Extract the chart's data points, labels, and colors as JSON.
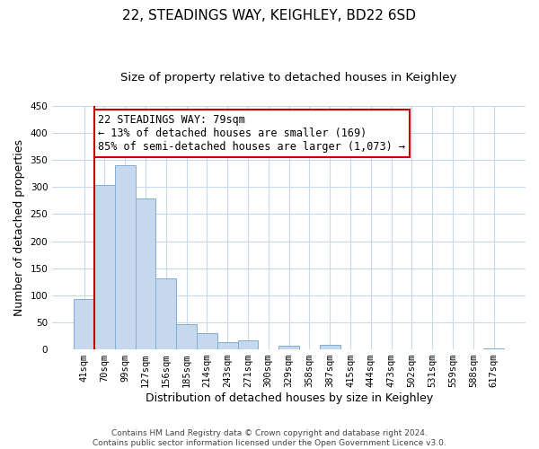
{
  "title": "22, STEADINGS WAY, KEIGHLEY, BD22 6SD",
  "subtitle": "Size of property relative to detached houses in Keighley",
  "xlabel": "Distribution of detached houses by size in Keighley",
  "ylabel": "Number of detached properties",
  "bin_labels": [
    "41sqm",
    "70sqm",
    "99sqm",
    "127sqm",
    "156sqm",
    "185sqm",
    "214sqm",
    "243sqm",
    "271sqm",
    "300sqm",
    "329sqm",
    "358sqm",
    "387sqm",
    "415sqm",
    "444sqm",
    "473sqm",
    "502sqm",
    "531sqm",
    "559sqm",
    "588sqm",
    "617sqm"
  ],
  "bar_values": [
    93,
    303,
    340,
    278,
    132,
    46,
    30,
    13,
    16,
    0,
    7,
    0,
    9,
    0,
    0,
    0,
    0,
    0,
    0,
    0,
    2
  ],
  "bar_color": "#c5d8ed",
  "bar_edge_color": "#7fafd4",
  "vline_color": "#cc0000",
  "annotation_text": "22 STEADINGS WAY: 79sqm\n← 13% of detached houses are smaller (169)\n85% of semi-detached houses are larger (1,073) →",
  "annotation_box_color": "#ffffff",
  "annotation_box_edge_color": "#cc0000",
  "ylim": [
    0,
    450
  ],
  "yticks": [
    0,
    50,
    100,
    150,
    200,
    250,
    300,
    350,
    400,
    450
  ],
  "footer_text": "Contains HM Land Registry data © Crown copyright and database right 2024.\nContains public sector information licensed under the Open Government Licence v3.0.",
  "background_color": "#ffffff",
  "grid_color": "#c8d8e8",
  "title_fontsize": 11,
  "subtitle_fontsize": 9.5,
  "axis_label_fontsize": 9,
  "tick_fontsize": 7.5,
  "annotation_fontsize": 8.5,
  "footer_fontsize": 6.5
}
